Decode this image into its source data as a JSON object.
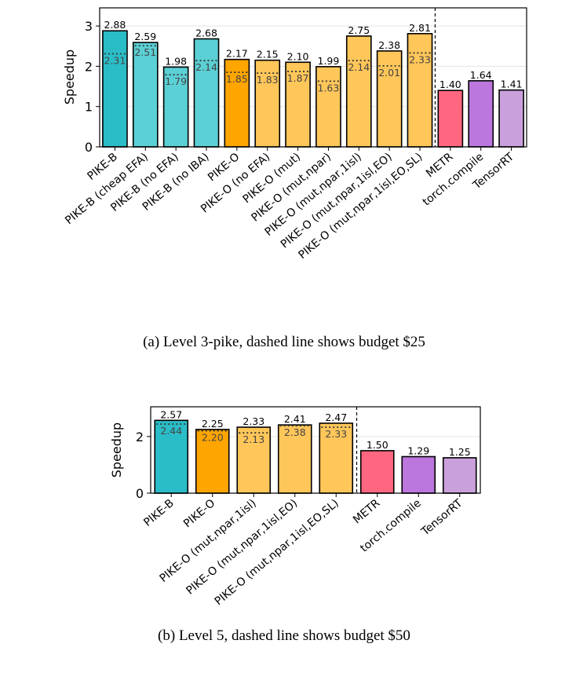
{
  "chart_data": [
    {
      "type": "bar",
      "caption": "(a) Level 3-pike, dashed line shows budget $25",
      "ylabel": "Speedup",
      "ylim": [
        0,
        3.45
      ],
      "yticks": [
        0,
        1,
        2,
        3
      ],
      "grid": "horizontal",
      "separator_after_index": 10,
      "categories": [
        "PIKE-B",
        "PIKE-B (cheap EFA)",
        "PIKE-B (no EFA)",
        "PIKE-B (no IBA)",
        "PIKE-O",
        "PIKE-O (no EFA)",
        "PIKE-O (mut)",
        "PIKE-O (mut,npar)",
        "PIKE-O (mut,npar,1isl)",
        "PIKE-O (mut,npar,1isl,EO)",
        "PIKE-O (mut,npar,1isl,EO,SL)",
        "METR",
        "torch.compile",
        "TensorRT"
      ],
      "values": [
        2.88,
        2.59,
        1.98,
        2.68,
        2.17,
        2.15,
        2.1,
        1.99,
        2.75,
        2.38,
        2.81,
        1.4,
        1.64,
        1.41
      ],
      "budget_values": [
        2.31,
        2.51,
        1.79,
        2.14,
        1.85,
        1.83,
        1.87,
        1.63,
        2.14,
        2.01,
        2.33,
        null,
        null,
        null
      ],
      "value_labels": [
        "2.88",
        "2.59",
        "1.98",
        "2.68",
        "2.17",
        "2.15",
        "2.10",
        "1.99",
        "2.75",
        "2.38",
        "2.81",
        "1.40",
        "1.64",
        "1.41"
      ],
      "budget_labels": [
        "2.31",
        "2.51",
        "1.79",
        "2.14",
        "1.85",
        "1.83",
        "1.87",
        "1.63",
        "2.14",
        "2.01",
        "2.33",
        null,
        null,
        null
      ],
      "colors": [
        "#2bbdc7",
        "#5bd0d5",
        "#5bd0d5",
        "#5bd0d5",
        "#ffa500",
        "#ffc65a",
        "#ffc65a",
        "#ffc65a",
        "#ffc65a",
        "#ffc65a",
        "#ffc65a",
        "#ff6680",
        "#bb77dd",
        "#c9a0dc"
      ]
    },
    {
      "type": "bar",
      "caption": "(b) Level 5, dashed line shows budget $50",
      "ylabel": "Speedup",
      "ylim": [
        0,
        3.05
      ],
      "yticks": [
        0,
        2
      ],
      "grid": "horizontal",
      "separator_after_index": 4,
      "categories": [
        "PIKE-B",
        "PIKE-O",
        "PIKE-O (mut,npar,1isl)",
        "PIKE-O (mut,npar,1isl,EO)",
        "PIKE-O (mut,npar,1isl,EO,SL)",
        "METR",
        "torch.compile",
        "TensorRT"
      ],
      "values": [
        2.57,
        2.25,
        2.33,
        2.41,
        2.47,
        1.5,
        1.29,
        1.25
      ],
      "budget_values": [
        2.44,
        2.2,
        2.13,
        2.38,
        2.33,
        null,
        null,
        null
      ],
      "value_labels": [
        "2.57",
        "2.25",
        "2.33",
        "2.41",
        "2.47",
        "1.50",
        "1.29",
        "1.25"
      ],
      "budget_labels": [
        "2.44",
        "2.20",
        "2.13",
        "2.38",
        "2.33",
        null,
        null,
        null
      ],
      "colors": [
        "#2bbdc7",
        "#ffa500",
        "#ffc65a",
        "#ffc65a",
        "#ffc65a",
        "#ff6680",
        "#bb77dd",
        "#c9a0dc"
      ]
    }
  ]
}
